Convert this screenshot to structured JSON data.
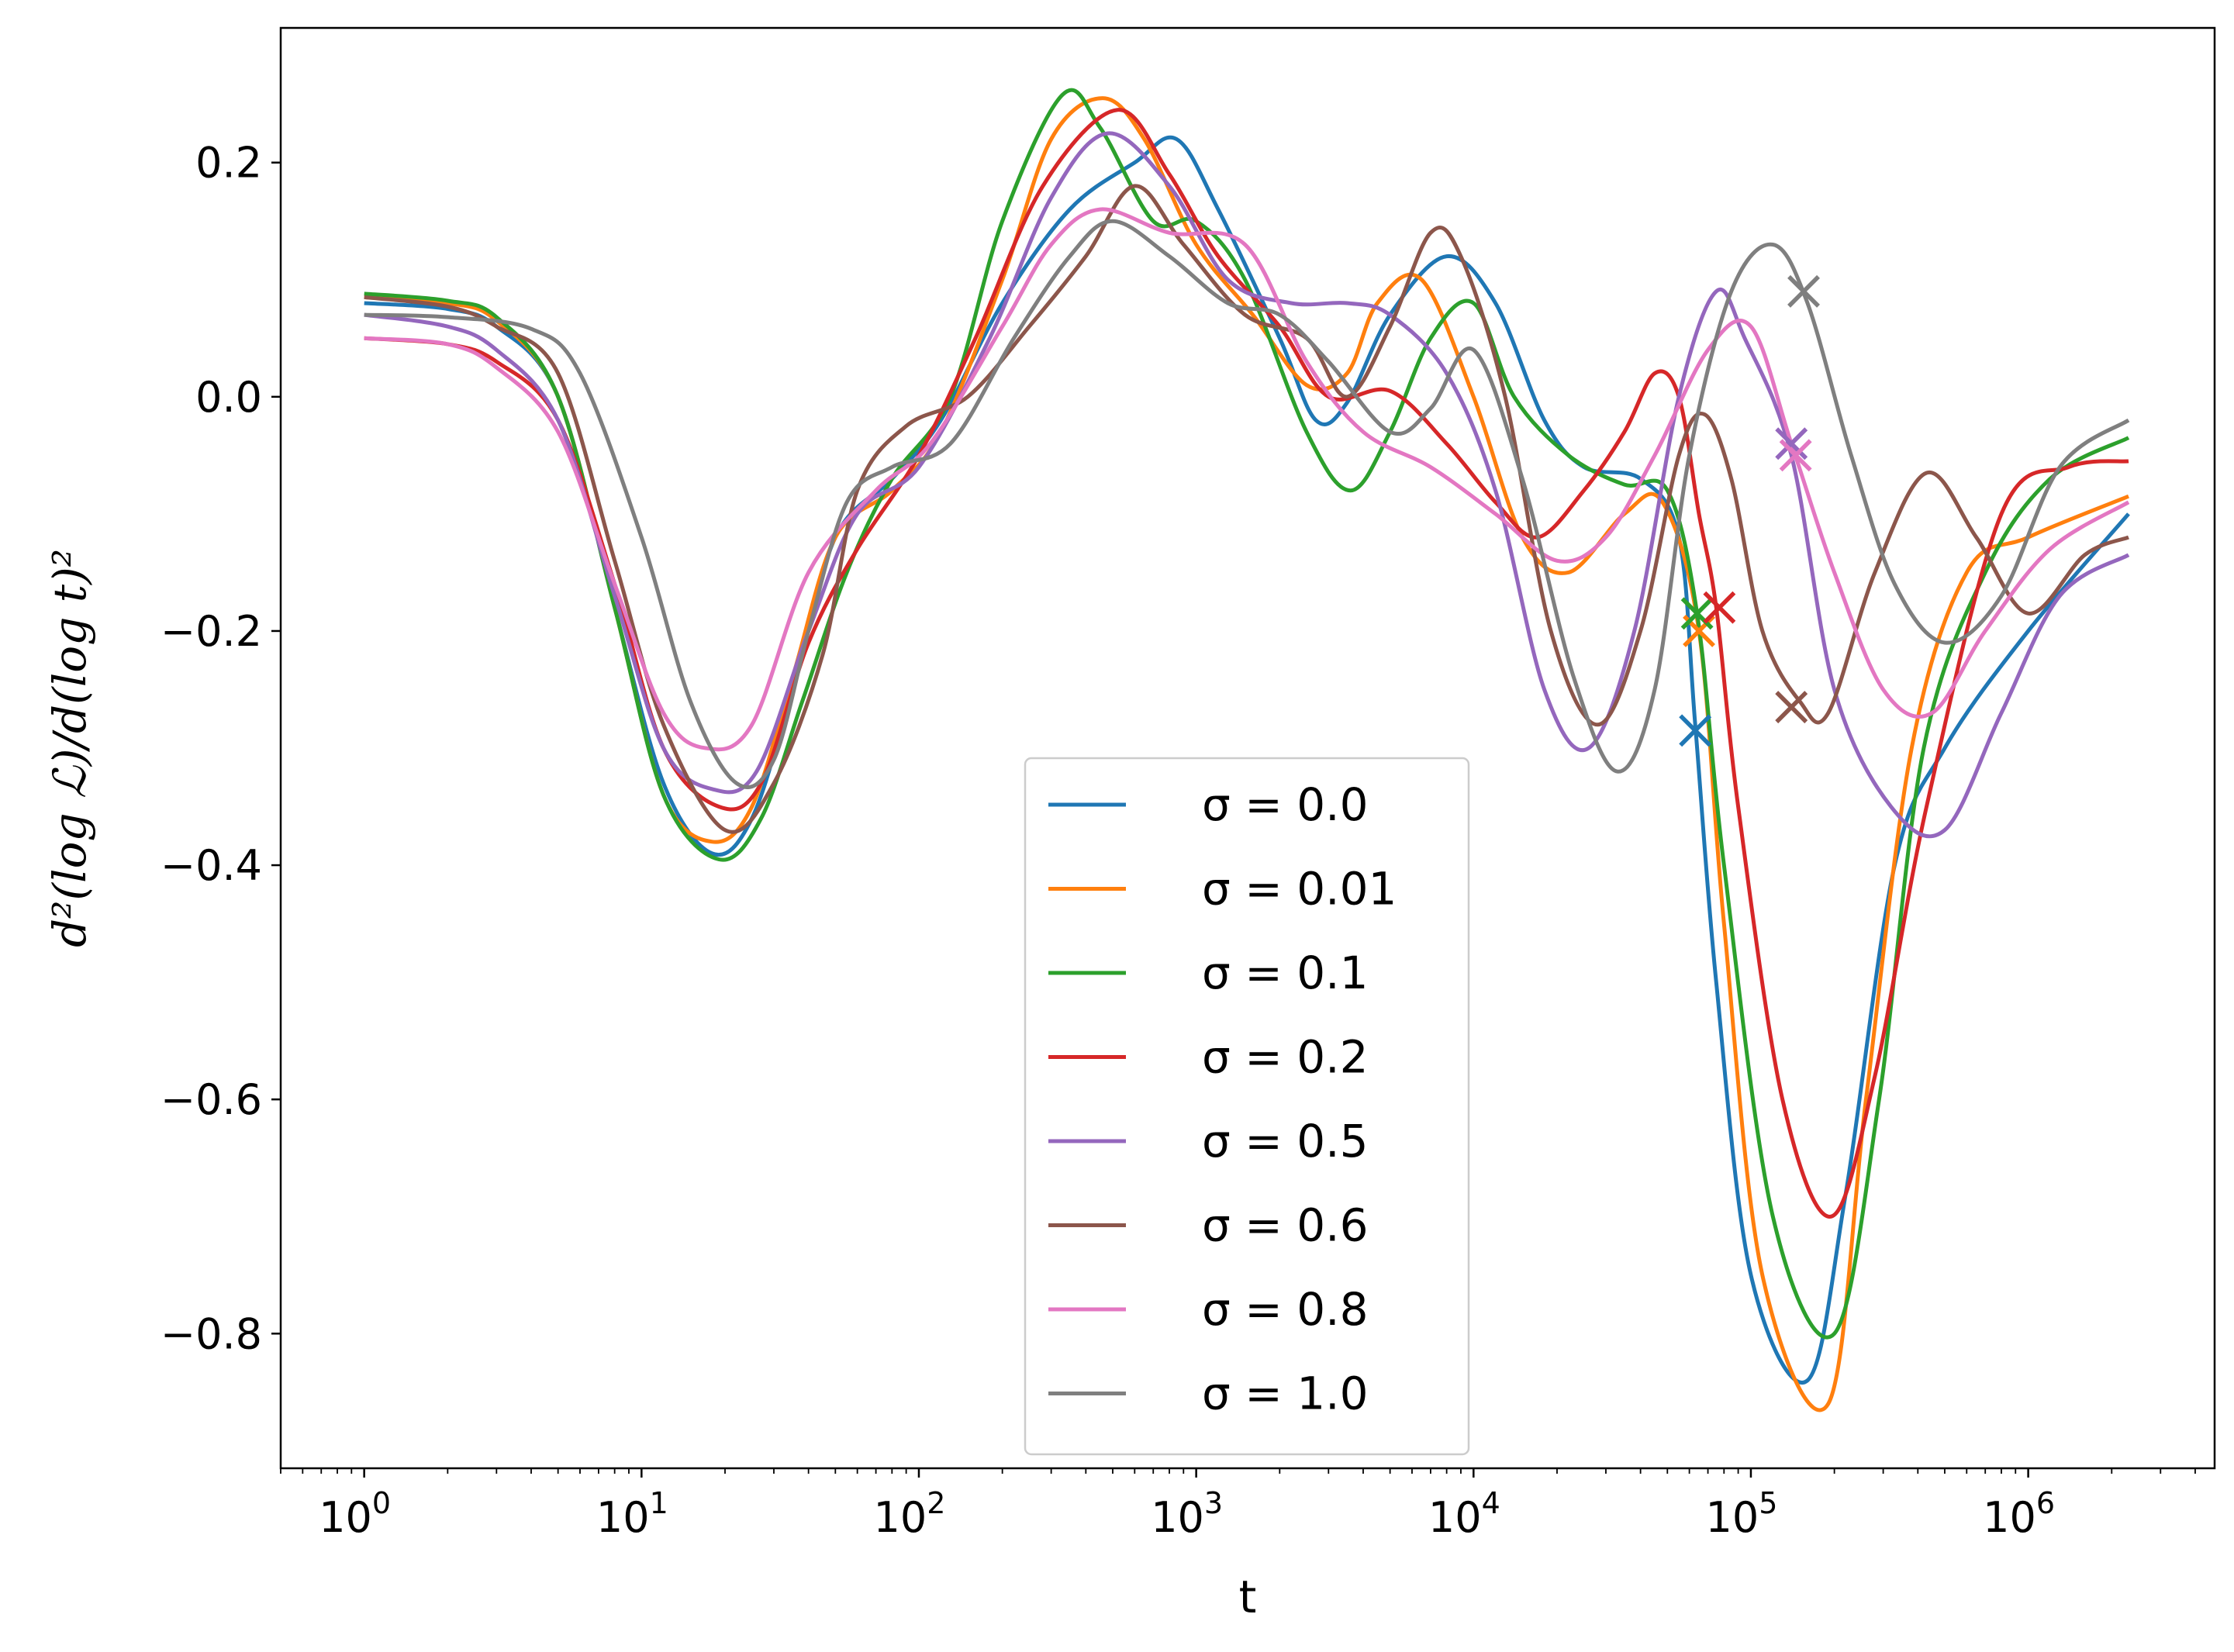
{
  "chart_data": {
    "type": "line",
    "xscale": "log",
    "xlim": [
      0.5,
      4700000
    ],
    "ylim": [
      -0.915,
      0.315
    ],
    "xlabel": "t",
    "ylabel": "d²(log ℒ)/d(log t)²",
    "grid": false,
    "legend_position": "lower center",
    "y_ticks": [
      0.2,
      0.0,
      -0.2,
      -0.4,
      -0.6,
      -0.8
    ],
    "y_tick_labels": [
      "0.2",
      "0.0",
      "−0.2",
      "−0.4",
      "−0.6",
      "−0.8"
    ],
    "x_ticks": [
      1,
      10,
      100,
      1000,
      10000,
      100000,
      1000000
    ],
    "x_tick_labels": [
      {
        "base": "10",
        "exp": "0"
      },
      {
        "base": "10",
        "exp": "1"
      },
      {
        "base": "10",
        "exp": "2"
      },
      {
        "base": "10",
        "exp": "3"
      },
      {
        "base": "10",
        "exp": "4"
      },
      {
        "base": "10",
        "exp": "5"
      },
      {
        "base": "10",
        "exp": "6"
      }
    ],
    "series": [
      {
        "name": "σ = 0.0",
        "color": "#1f77b4",
        "points": [
          [
            1,
            0.08
          ],
          [
            2,
            0.075
          ],
          [
            3,
            0.06
          ],
          [
            5,
            0.0
          ],
          [
            8,
            -0.18
          ],
          [
            12,
            -0.33
          ],
          [
            18,
            -0.39
          ],
          [
            25,
            -0.36
          ],
          [
            35,
            -0.25
          ],
          [
            50,
            -0.12
          ],
          [
            80,
            -0.07
          ],
          [
            120,
            -0.02
          ],
          [
            200,
            0.08
          ],
          [
            350,
            0.16
          ],
          [
            600,
            0.2
          ],
          [
            850,
            0.22
          ],
          [
            1200,
            0.16
          ],
          [
            2000,
            0.05
          ],
          [
            2700,
            -0.02
          ],
          [
            3500,
            -0.005
          ],
          [
            5000,
            0.07
          ],
          [
            8000,
            0.12
          ],
          [
            12000,
            0.08
          ],
          [
            18000,
            -0.02
          ],
          [
            25000,
            -0.06
          ],
          [
            40000,
            -0.07
          ],
          [
            55000,
            -0.12
          ],
          [
            63000,
            -0.28
          ],
          [
            75000,
            -0.5
          ],
          [
            100000,
            -0.75
          ],
          [
            160000,
            -0.84
          ],
          [
            220000,
            -0.68
          ],
          [
            330000,
            -0.4
          ],
          [
            500000,
            -0.3
          ],
          [
            1000000,
            -0.2
          ],
          [
            2300000,
            -0.1
          ]
        ],
        "marker": [
          63000,
          -0.285
        ]
      },
      {
        "name": "σ = 0.01",
        "color": "#ff7f0e",
        "points": [
          [
            1,
            0.085
          ],
          [
            2,
            0.08
          ],
          [
            3,
            0.065
          ],
          [
            5,
            0.0
          ],
          [
            8,
            -0.18
          ],
          [
            12,
            -0.34
          ],
          [
            18,
            -0.38
          ],
          [
            25,
            -0.35
          ],
          [
            35,
            -0.24
          ],
          [
            50,
            -0.12
          ],
          [
            80,
            -0.08
          ],
          [
            120,
            -0.03
          ],
          [
            200,
            0.1
          ],
          [
            300,
            0.22
          ],
          [
            460,
            0.255
          ],
          [
            650,
            0.22
          ],
          [
            1000,
            0.13
          ],
          [
            1600,
            0.07
          ],
          [
            2500,
            0.01
          ],
          [
            3500,
            0.02
          ],
          [
            4500,
            0.08
          ],
          [
            6500,
            0.1
          ],
          [
            10000,
            0.0
          ],
          [
            15000,
            -0.12
          ],
          [
            22000,
            -0.15
          ],
          [
            35000,
            -0.1
          ],
          [
            48000,
            -0.09
          ],
          [
            65000,
            -0.2
          ],
          [
            80000,
            -0.45
          ],
          [
            110000,
            -0.75
          ],
          [
            190000,
            -0.86
          ],
          [
            260000,
            -0.6
          ],
          [
            380000,
            -0.3
          ],
          [
            600000,
            -0.15
          ],
          [
            1000000,
            -0.12
          ],
          [
            2300000,
            -0.085
          ]
        ],
        "marker": [
          65000,
          -0.2
        ]
      },
      {
        "name": "σ = 0.1",
        "color": "#2ca02c",
        "points": [
          [
            1,
            0.088
          ],
          [
            2,
            0.082
          ],
          [
            3,
            0.068
          ],
          [
            5,
            0.0
          ],
          [
            8,
            -0.18
          ],
          [
            12,
            -0.34
          ],
          [
            19,
            -0.395
          ],
          [
            27,
            -0.36
          ],
          [
            38,
            -0.26
          ],
          [
            55,
            -0.15
          ],
          [
            80,
            -0.07
          ],
          [
            130,
            0.0
          ],
          [
            200,
            0.15
          ],
          [
            330,
            0.258
          ],
          [
            450,
            0.23
          ],
          [
            700,
            0.15
          ],
          [
            1000,
            0.15
          ],
          [
            1500,
            0.1
          ],
          [
            2500,
            -0.03
          ],
          [
            3600,
            -0.08
          ],
          [
            5000,
            -0.03
          ],
          [
            7000,
            0.05
          ],
          [
            10000,
            0.08
          ],
          [
            14000,
            0.0
          ],
          [
            22000,
            -0.05
          ],
          [
            35000,
            -0.075
          ],
          [
            50000,
            -0.08
          ],
          [
            64000,
            -0.185
          ],
          [
            80000,
            -0.4
          ],
          [
            120000,
            -0.7
          ],
          [
            200000,
            -0.8
          ],
          [
            290000,
            -0.6
          ],
          [
            420000,
            -0.3
          ],
          [
            700000,
            -0.15
          ],
          [
            1200000,
            -0.07
          ],
          [
            2300000,
            -0.035
          ]
        ],
        "marker": [
          64000,
          -0.185
        ]
      },
      {
        "name": "σ = 0.2",
        "color": "#d62728",
        "points": [
          [
            1,
            0.05
          ],
          [
            2,
            0.045
          ],
          [
            3,
            0.03
          ],
          [
            5,
            -0.02
          ],
          [
            8,
            -0.16
          ],
          [
            12,
            -0.3
          ],
          [
            19,
            -0.35
          ],
          [
            27,
            -0.33
          ],
          [
            40,
            -0.21
          ],
          [
            60,
            -0.13
          ],
          [
            100,
            -0.05
          ],
          [
            160,
            0.05
          ],
          [
            280,
            0.18
          ],
          [
            520,
            0.245
          ],
          [
            800,
            0.19
          ],
          [
            1200,
            0.12
          ],
          [
            2000,
            0.06
          ],
          [
            3000,
            0.0
          ],
          [
            5000,
            0.005
          ],
          [
            8000,
            -0.04
          ],
          [
            12000,
            -0.09
          ],
          [
            17000,
            -0.12
          ],
          [
            25000,
            -0.08
          ],
          [
            35000,
            -0.03
          ],
          [
            45000,
            0.02
          ],
          [
            55000,
            0.0
          ],
          [
            65000,
            -0.1
          ],
          [
            75000,
            -0.18
          ],
          [
            90000,
            -0.35
          ],
          [
            130000,
            -0.6
          ],
          [
            195000,
            -0.7
          ],
          [
            280000,
            -0.58
          ],
          [
            430000,
            -0.35
          ],
          [
            800000,
            -0.1
          ],
          [
            1400000,
            -0.06
          ],
          [
            2300000,
            -0.055
          ]
        ],
        "marker": [
          77000,
          -0.18
        ]
      },
      {
        "name": "σ = 0.5",
        "color": "#9467bd",
        "points": [
          [
            1,
            0.07
          ],
          [
            2,
            0.06
          ],
          [
            3,
            0.04
          ],
          [
            5,
            -0.02
          ],
          [
            8,
            -0.17
          ],
          [
            12,
            -0.3
          ],
          [
            18,
            -0.335
          ],
          [
            26,
            -0.32
          ],
          [
            40,
            -0.2
          ],
          [
            60,
            -0.1
          ],
          [
            100,
            -0.06
          ],
          [
            180,
            0.05
          ],
          [
            300,
            0.17
          ],
          [
            480,
            0.225
          ],
          [
            800,
            0.18
          ],
          [
            1300,
            0.1
          ],
          [
            2200,
            0.08
          ],
          [
            3500,
            0.08
          ],
          [
            5000,
            0.07
          ],
          [
            8000,
            0.02
          ],
          [
            12000,
            -0.08
          ],
          [
            18000,
            -0.25
          ],
          [
            26000,
            -0.3
          ],
          [
            38000,
            -0.2
          ],
          [
            55000,
            0.0
          ],
          [
            75000,
            0.09
          ],
          [
            95000,
            0.05
          ],
          [
            140000,
            -0.05
          ],
          [
            200000,
            -0.25
          ],
          [
            320000,
            -0.35
          ],
          [
            500000,
            -0.37
          ],
          [
            800000,
            -0.27
          ],
          [
            1300000,
            -0.17
          ],
          [
            2300000,
            -0.135
          ]
        ],
        "marker": [
          140000,
          -0.04
        ]
      },
      {
        "name": "σ = 0.6",
        "color": "#8c564b",
        "points": [
          [
            1,
            0.085
          ],
          [
            2,
            0.077
          ],
          [
            3,
            0.06
          ],
          [
            5,
            0.02
          ],
          [
            8,
            -0.14
          ],
          [
            12,
            -0.28
          ],
          [
            20,
            -0.37
          ],
          [
            30,
            -0.33
          ],
          [
            45,
            -0.22
          ],
          [
            60,
            -0.08
          ],
          [
            90,
            -0.025
          ],
          [
            150,
            0.0
          ],
          [
            250,
            0.06
          ],
          [
            400,
            0.12
          ],
          [
            600,
            0.18
          ],
          [
            900,
            0.13
          ],
          [
            1500,
            0.07
          ],
          [
            2500,
            0.05
          ],
          [
            3500,
            0.0
          ],
          [
            5000,
            0.06
          ],
          [
            7000,
            0.14
          ],
          [
            9000,
            0.12
          ],
          [
            13000,
            0.0
          ],
          [
            19000,
            -0.2
          ],
          [
            28000,
            -0.28
          ],
          [
            40000,
            -0.2
          ],
          [
            55000,
            -0.05
          ],
          [
            68000,
            -0.015
          ],
          [
            85000,
            -0.07
          ],
          [
            110000,
            -0.2
          ],
          [
            150000,
            -0.26
          ],
          [
            190000,
            -0.27
          ],
          [
            280000,
            -0.15
          ],
          [
            430000,
            -0.065
          ],
          [
            650000,
            -0.12
          ],
          [
            1000000,
            -0.185
          ],
          [
            1600000,
            -0.135
          ],
          [
            2300000,
            -0.12
          ]
        ],
        "marker": [
          140000,
          -0.265
        ]
      },
      {
        "name": "σ = 0.8",
        "color": "#e377c2",
        "points": [
          [
            1,
            0.05
          ],
          [
            2,
            0.045
          ],
          [
            3,
            0.025
          ],
          [
            5,
            -0.03
          ],
          [
            8,
            -0.16
          ],
          [
            12,
            -0.27
          ],
          [
            17,
            -0.3
          ],
          [
            25,
            -0.28
          ],
          [
            40,
            -0.15
          ],
          [
            70,
            -0.08
          ],
          [
            110,
            -0.04
          ],
          [
            200,
            0.06
          ],
          [
            300,
            0.13
          ],
          [
            450,
            0.16
          ],
          [
            800,
            0.14
          ],
          [
            1500,
            0.13
          ],
          [
            2500,
            0.03
          ],
          [
            4000,
            -0.03
          ],
          [
            7000,
            -0.06
          ],
          [
            12000,
            -0.1
          ],
          [
            20000,
            -0.14
          ],
          [
            30000,
            -0.12
          ],
          [
            45000,
            -0.05
          ],
          [
            70000,
            0.04
          ],
          [
            100000,
            0.06
          ],
          [
            140000,
            -0.04
          ],
          [
            200000,
            -0.15
          ],
          [
            300000,
            -0.25
          ],
          [
            450000,
            -0.27
          ],
          [
            700000,
            -0.2
          ],
          [
            1200000,
            -0.13
          ],
          [
            2300000,
            -0.09
          ]
        ],
        "marker": [
          145000,
          -0.05
        ]
      },
      {
        "name": "σ = 1.0",
        "color": "#7f7f7f",
        "points": [
          [
            1,
            0.07
          ],
          [
            2,
            0.068
          ],
          [
            4,
            0.058
          ],
          [
            6,
            0.02
          ],
          [
            10,
            -0.12
          ],
          [
            15,
            -0.26
          ],
          [
            22,
            -0.33
          ],
          [
            30,
            -0.31
          ],
          [
            40,
            -0.2
          ],
          [
            55,
            -0.09
          ],
          [
            80,
            -0.06
          ],
          [
            130,
            -0.04
          ],
          [
            220,
            0.05
          ],
          [
            350,
            0.12
          ],
          [
            500,
            0.15
          ],
          [
            800,
            0.12
          ],
          [
            1300,
            0.08
          ],
          [
            2000,
            0.07
          ],
          [
            3000,
            0.03
          ],
          [
            5000,
            -0.03
          ],
          [
            7000,
            -0.01
          ],
          [
            10000,
            0.04
          ],
          [
            15000,
            -0.07
          ],
          [
            23000,
            -0.24
          ],
          [
            33000,
            -0.32
          ],
          [
            45000,
            -0.25
          ],
          [
            60000,
            -0.05
          ],
          [
            85000,
            0.09
          ],
          [
            120000,
            0.13
          ],
          [
            160000,
            0.08
          ],
          [
            230000,
            -0.05
          ],
          [
            330000,
            -0.16
          ],
          [
            500000,
            -0.21
          ],
          [
            800000,
            -0.17
          ],
          [
            1300000,
            -0.06
          ],
          [
            2300000,
            -0.02
          ]
        ],
        "marker": [
          155000,
          0.09
        ]
      }
    ]
  }
}
